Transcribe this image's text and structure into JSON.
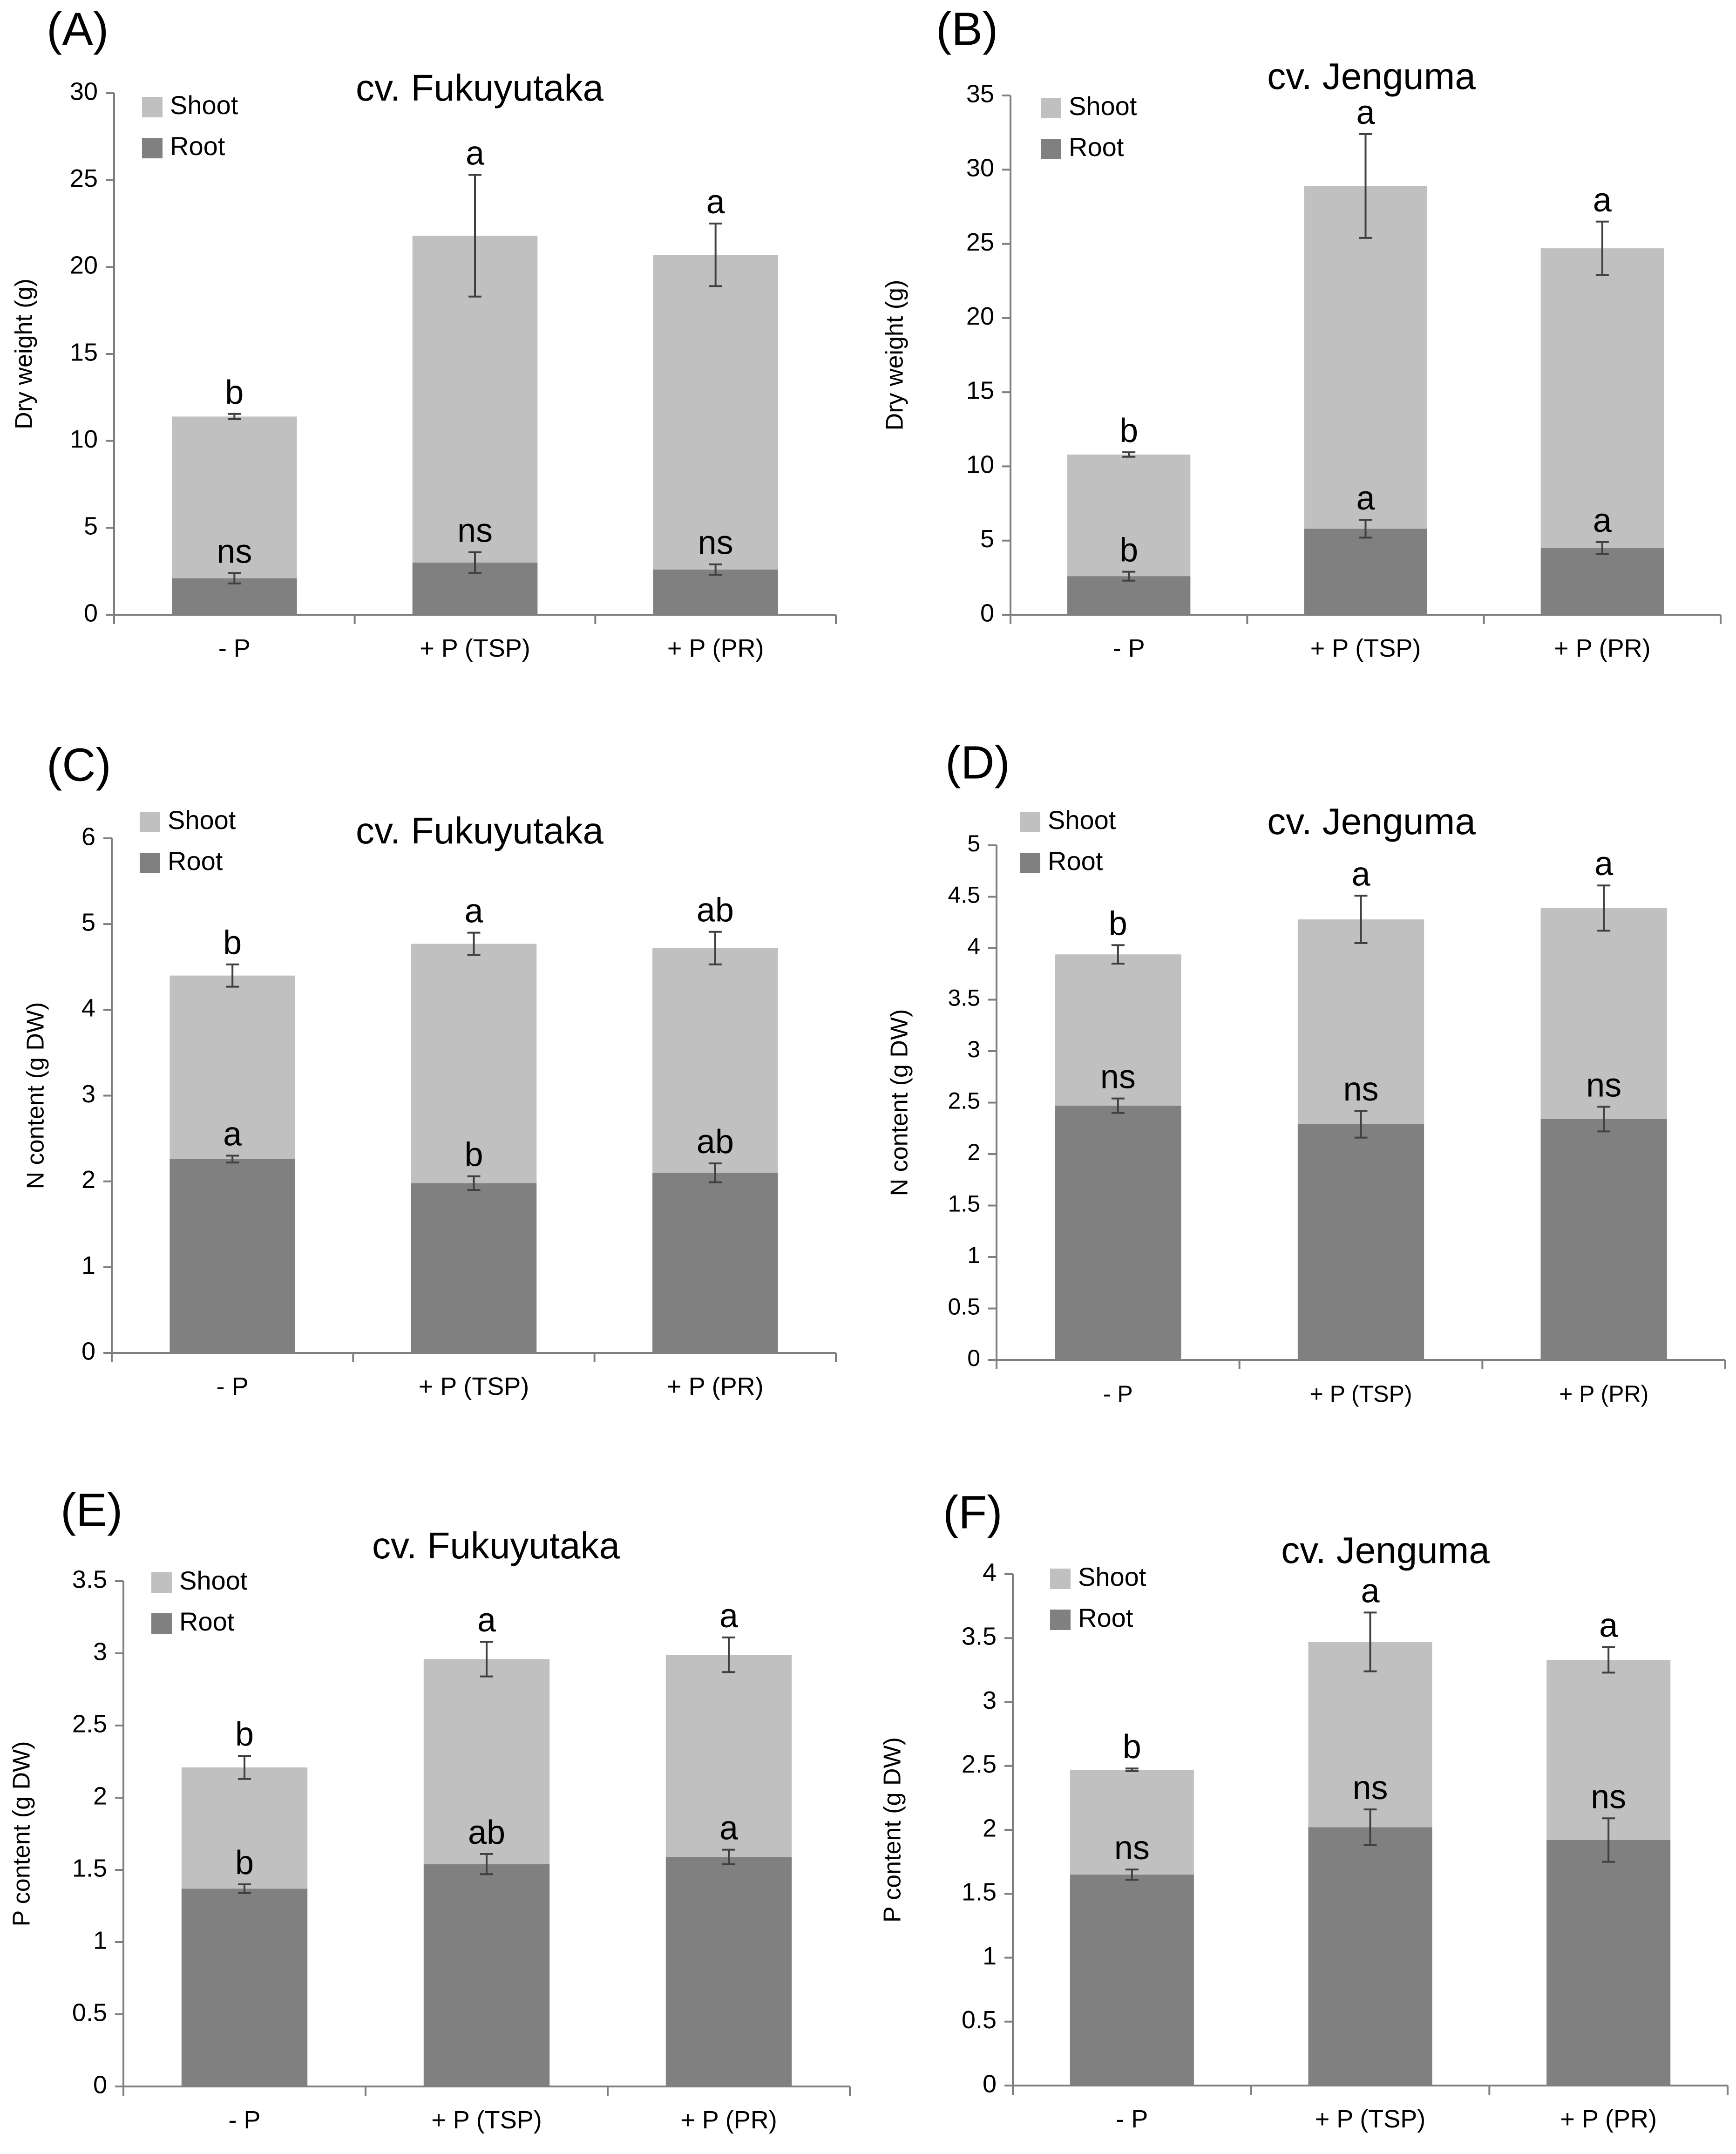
{
  "figure": {
    "colors": {
      "shoot": "#c0c0c0",
      "root": "#808080",
      "axis": "#7f7f7f",
      "text": "#000000"
    },
    "legend_labels": [
      "Shoot",
      "Root"
    ]
  },
  "chart_data": [
    {
      "panel": "(A)",
      "type": "bar",
      "stacked": true,
      "title": "cv. Fukuyutaka",
      "ylabel": "Dry weight (g)",
      "xlabel": "",
      "categories": [
        "- P",
        "+ P (TSP)",
        "+ P (PR)"
      ],
      "ylim": [
        0,
        30
      ],
      "yticks": [
        "0",
        "5",
        "10",
        "15",
        "20",
        "25",
        "30"
      ],
      "series": [
        {
          "name": "Root",
          "values": [
            2.1,
            3.0,
            2.6
          ],
          "errors": [
            0.3,
            0.6,
            0.3
          ],
          "letters": [
            "ns",
            "ns",
            "ns"
          ]
        },
        {
          "name": "Shoot",
          "totals": [
            11.4,
            21.8,
            20.7
          ],
          "errors": [
            0.15,
            3.5,
            1.8
          ],
          "letters": [
            "b",
            "a",
            "a"
          ]
        }
      ]
    },
    {
      "panel": "(B)",
      "type": "bar",
      "stacked": true,
      "title": "cv. Jenguma",
      "ylabel": "Dry weight (g)",
      "xlabel": "",
      "categories": [
        "- P",
        "+ P (TSP)",
        "+ P (PR)"
      ],
      "ylim": [
        0,
        35
      ],
      "yticks": [
        "0",
        "5",
        "10",
        "15",
        "20",
        "25",
        "30",
        "35"
      ],
      "series": [
        {
          "name": "Root",
          "values": [
            2.6,
            5.8,
            4.5
          ],
          "errors": [
            0.3,
            0.6,
            0.4
          ],
          "letters": [
            "b",
            "a",
            "a"
          ]
        },
        {
          "name": "Shoot",
          "totals": [
            10.8,
            28.9,
            24.7
          ],
          "errors": [
            0.15,
            3.5,
            1.8
          ],
          "letters": [
            "b",
            "a",
            "a"
          ]
        }
      ]
    },
    {
      "panel": "(C)",
      "type": "bar",
      "stacked": true,
      "title": "cv. Fukuyutaka",
      "ylabel": "N content (g DW)",
      "xlabel": "",
      "categories": [
        "- P",
        "+ P (TSP)",
        "+ P (PR)"
      ],
      "ylim": [
        0,
        6
      ],
      "yticks": [
        "0",
        "1",
        "2",
        "3",
        "4",
        "5",
        "6"
      ],
      "series": [
        {
          "name": "Root",
          "values": [
            2.26,
            1.98,
            2.1
          ],
          "errors": [
            0.04,
            0.08,
            0.11
          ],
          "letters": [
            "a",
            "b",
            "ab"
          ]
        },
        {
          "name": "Shoot",
          "totals": [
            4.4,
            4.77,
            4.72
          ],
          "errors": [
            0.13,
            0.13,
            0.19
          ],
          "letters": [
            "b",
            "a",
            "ab"
          ]
        }
      ]
    },
    {
      "panel": "(D)",
      "type": "bar",
      "stacked": true,
      "title": "cv. Jenguma",
      "ylabel": "N content (g DW)",
      "xlabel": "",
      "categories": [
        "- P",
        "+ P (TSP)",
        "+ P (PR)"
      ],
      "ylim": [
        0,
        5
      ],
      "yticks": [
        "0",
        "0.5",
        "1",
        "1.5",
        "2",
        "2.5",
        "3",
        "3.5",
        "4",
        "4.5",
        "5"
      ],
      "series": [
        {
          "name": "Root",
          "values": [
            2.47,
            2.29,
            2.34
          ],
          "errors": [
            0.07,
            0.13,
            0.12
          ],
          "letters": [
            "ns",
            "ns",
            "ns"
          ]
        },
        {
          "name": "Shoot",
          "totals": [
            3.94,
            4.28,
            4.39
          ],
          "errors": [
            0.09,
            0.23,
            0.22
          ],
          "letters": [
            "b",
            "a",
            "a"
          ]
        }
      ]
    },
    {
      "panel": "(E)",
      "type": "bar",
      "stacked": true,
      "title": "cv. Fukuyutaka",
      "ylabel": "P content (g DW)",
      "xlabel": "",
      "categories": [
        "- P",
        "+ P (TSP)",
        "+ P (PR)"
      ],
      "ylim": [
        0,
        3.5
      ],
      "yticks": [
        "0",
        "0.5",
        "1",
        "1.5",
        "2",
        "2.5",
        "3",
        "3.5"
      ],
      "series": [
        {
          "name": "Root",
          "values": [
            1.37,
            1.54,
            1.59
          ],
          "errors": [
            0.03,
            0.07,
            0.05
          ],
          "letters": [
            "b",
            "ab",
            "a"
          ]
        },
        {
          "name": "Shoot",
          "totals": [
            2.21,
            2.96,
            2.99
          ],
          "errors": [
            0.08,
            0.12,
            0.12
          ],
          "letters": [
            "b",
            "a",
            "a"
          ]
        }
      ]
    },
    {
      "panel": "(F)",
      "type": "bar",
      "stacked": true,
      "title": "cv. Jenguma",
      "ylabel": "P content (g DW)",
      "xlabel": "",
      "categories": [
        "- P",
        "+ P (TSP)",
        "+ P (PR)"
      ],
      "ylim": [
        0,
        4
      ],
      "yticks": [
        "0",
        "0.5",
        "1",
        "1.5",
        "2",
        "2.5",
        "3",
        "3.5",
        "4"
      ],
      "series": [
        {
          "name": "Root",
          "values": [
            1.65,
            2.02,
            1.92
          ],
          "errors": [
            0.04,
            0.14,
            0.17
          ],
          "letters": [
            "ns",
            "ns",
            "ns"
          ]
        },
        {
          "name": "Shoot",
          "totals": [
            2.47,
            3.47,
            3.33
          ],
          "errors": [
            0.01,
            0.23,
            0.1
          ],
          "letters": [
            "b",
            "a",
            "a"
          ]
        }
      ]
    }
  ]
}
